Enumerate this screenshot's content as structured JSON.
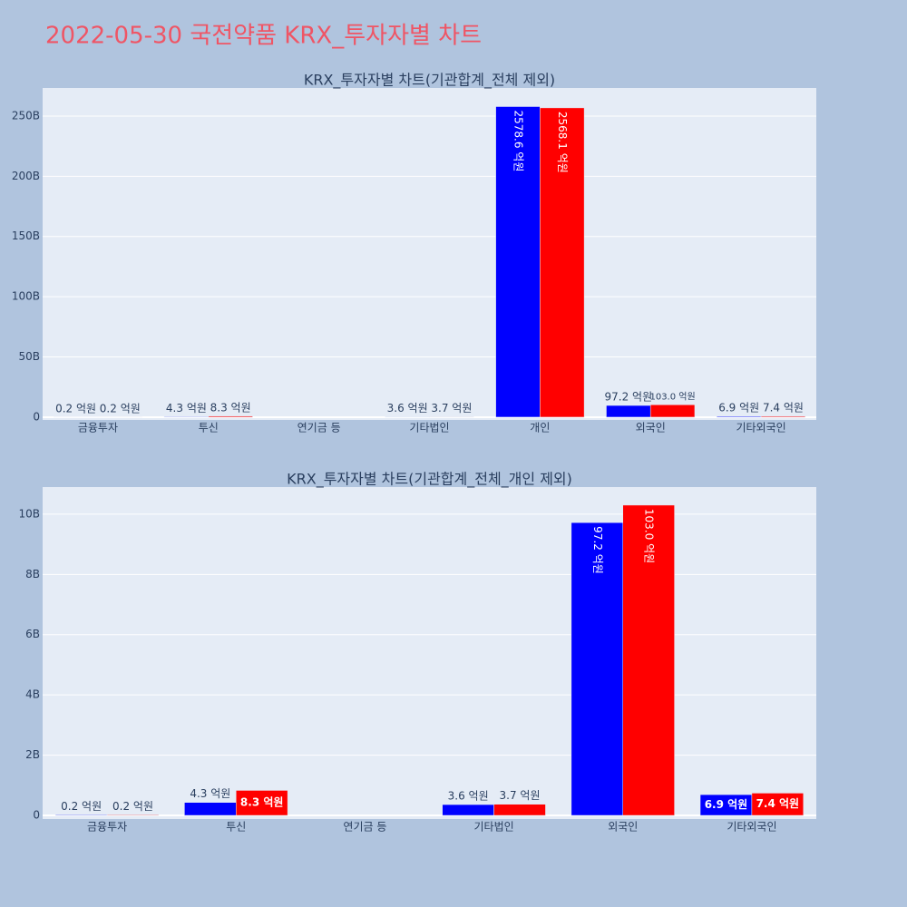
{
  "title": "2022-05-30 국전약품 KRX_투자자별 차트",
  "chart_data": [
    {
      "type": "bar",
      "title": "KRX_투자자별 차트(기관합계_전체 제외)",
      "categories": [
        "금융투자",
        "투신",
        "연기금 등",
        "기타법인",
        "개인",
        "외국인",
        "기타외국인"
      ],
      "series": [
        {
          "color": "#0000ff",
          "values": [
            0.02,
            0.43,
            null,
            0.36,
            257.86,
            9.72,
            0.69
          ],
          "value_labels": [
            "0.2 억원",
            "4.3 억원",
            null,
            "3.6 억원",
            "2578.6 억원",
            "97.2 억원",
            "6.9 억원"
          ]
        },
        {
          "color": "#ff0000",
          "values": [
            0.02,
            0.83,
            null,
            0.37,
            256.81,
            10.3,
            0.74
          ],
          "value_labels": [
            "0.2 억원",
            "8.3 억원",
            null,
            "3.7 억원",
            "2568.1 억원",
            "103.0 억원",
            "7.4 억원"
          ]
        }
      ],
      "ylim": [
        -2.3,
        273.3
      ],
      "yticks": [
        0,
        {
          "value": 50,
          "label": "50B"
        },
        {
          "value": 100,
          "label": "100B"
        },
        {
          "value": 150,
          "label": "150B"
        },
        {
          "value": 200,
          "label": "200B"
        },
        {
          "value": 250,
          "label": "250B"
        }
      ],
      "grid": true
    },
    {
      "type": "bar",
      "title": "KRX_투자자별 차트(기관합계_전체_개인 제외)",
      "categories": [
        "금융투자",
        "투신",
        "연기금 등",
        "기타법인",
        "외국인",
        "기타외국인"
      ],
      "series": [
        {
          "color": "#0000ff",
          "values": [
            0.02,
            0.43,
            null,
            0.36,
            9.72,
            0.69
          ],
          "value_labels": [
            "0.2 억원",
            "4.3 억원",
            null,
            "3.6 억원",
            "97.2 억원",
            "6.9 억원"
          ]
        },
        {
          "color": "#ff0000",
          "values": [
            0.02,
            0.83,
            null,
            0.37,
            10.3,
            0.74
          ],
          "value_labels": [
            "0.2 억원",
            "8.3 억원",
            null,
            "3.7 억원",
            "103.0 억원",
            "7.4 억원"
          ]
        }
      ],
      "ylim": [
        -0.12,
        10.9
      ],
      "yticks": [
        0,
        {
          "value": 2,
          "label": "2B"
        },
        {
          "value": 4,
          "label": "4B"
        },
        {
          "value": 6,
          "label": "6B"
        },
        {
          "value": 8,
          "label": "8B"
        },
        {
          "value": 10,
          "label": "10B"
        }
      ],
      "grid": true
    }
  ]
}
